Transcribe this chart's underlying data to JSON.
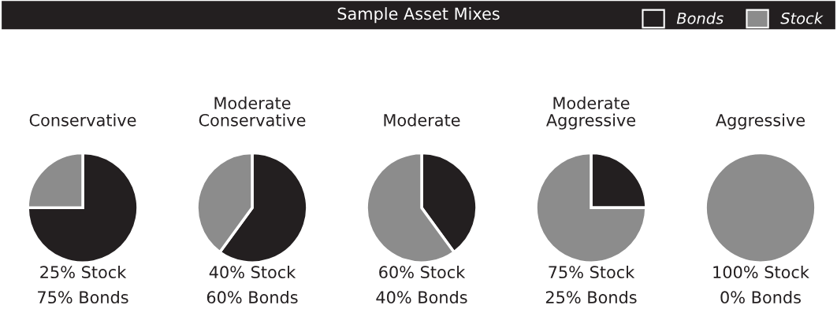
{
  "chart_data": [
    {
      "type": "pie",
      "title": "Conservative",
      "categories": [
        "Bonds",
        "Stock"
      ],
      "values": [
        75,
        25
      ],
      "colors": [
        "#231f20",
        "#8c8c8c"
      ],
      "legend": "top right",
      "annotations": [
        "Sample Asset Mixes",
        "25% Stock",
        "75% Bonds"
      ]
    },
    {
      "type": "pie",
      "title": "Moderate\nConservative",
      "categories": [
        null,
        null
      ],
      "values": [
        60,
        40
      ],
      "colors": [
        "#231f20",
        "#8c8c8c"
      ],
      "annotations": [
        "40% Stock",
        "60% Bonds"
      ]
    },
    {
      "type": "pie",
      "title": "Moderate",
      "categories": [
        null,
        null
      ],
      "values": [
        40,
        60
      ],
      "colors": [
        "#231f20",
        "#8c8c8c"
      ],
      "annotations": [
        "60% Stock",
        "40% Bonds"
      ]
    },
    {
      "type": "pie",
      "title": "Moderate\nAggressive",
      "categories": [
        null,
        null
      ],
      "values": [
        25,
        75
      ],
      "colors": [
        "#231f20",
        "#8c8c8c"
      ],
      "annotations": [
        "75% Stock",
        "25% Bonds"
      ]
    },
    {
      "type": "pie",
      "title": "Aggressive",
      "categories": [
        null,
        null
      ],
      "values": [
        0,
        100
      ],
      "colors": [
        "#231f20",
        "#8c8c8c"
      ],
      "annotations": [
        "100% Stock",
        "0% Bonds"
      ]
    }
  ]
}
